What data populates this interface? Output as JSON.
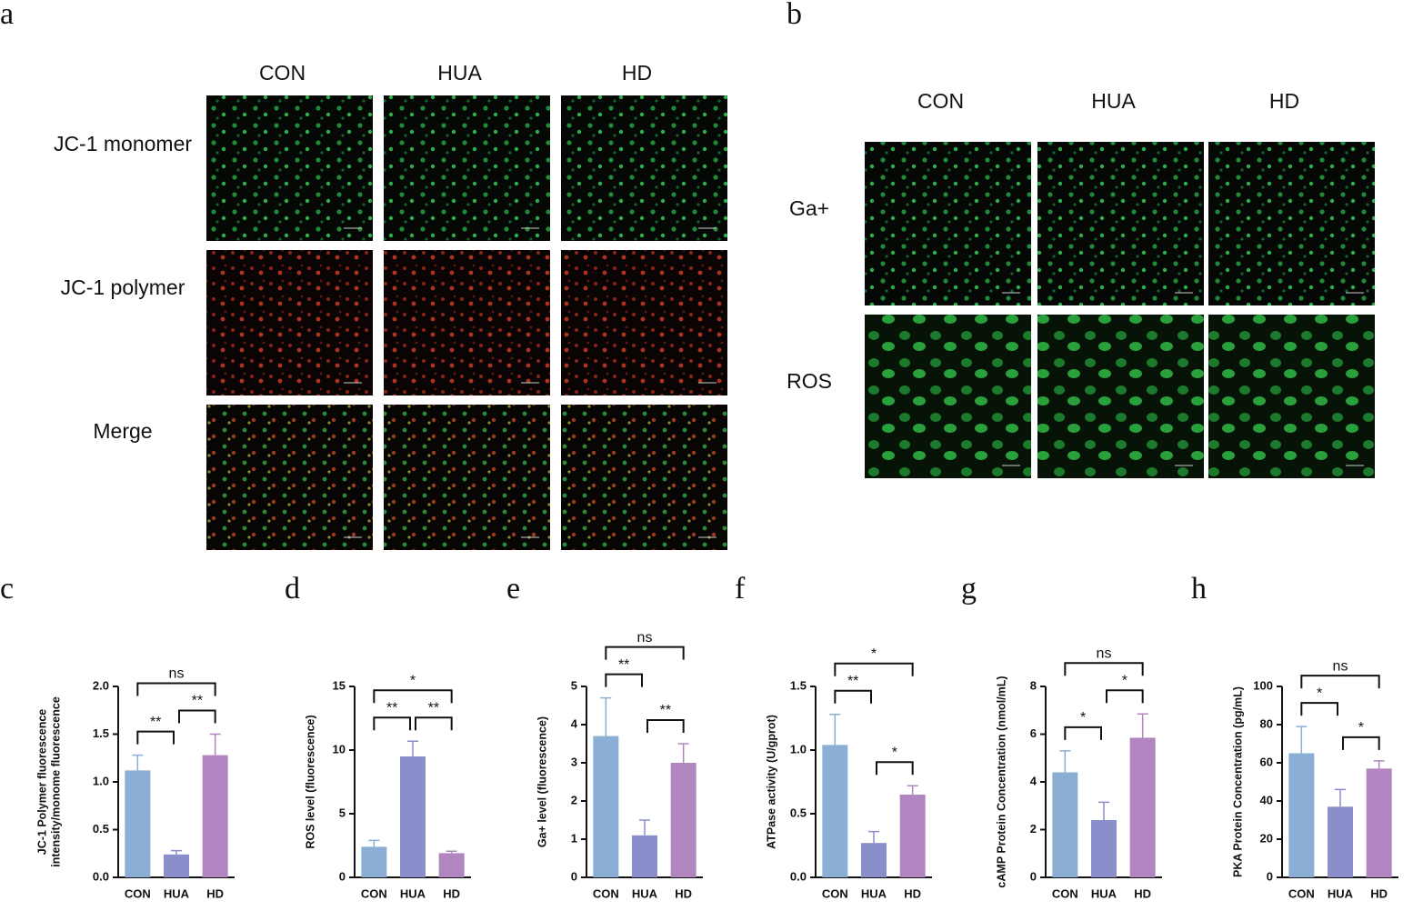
{
  "image_panels": [
    {
      "label": "a",
      "columns": [
        "CON",
        "HUA",
        "HD"
      ],
      "rows": [
        "JC-1 monomer",
        "JC-1 polymer",
        "Merge"
      ]
    },
    {
      "label": "b",
      "columns": [
        "CON",
        "HUA",
        "HD"
      ],
      "rows": [
        "Ga+",
        "ROS"
      ]
    }
  ],
  "chart_data": [
    {
      "type": "bar",
      "panel": "c",
      "ylabel": [
        "JC-1 Polymer fluorescence",
        "intensity/monome fluorescence"
      ],
      "categories": [
        "CON",
        "HUA",
        "HD"
      ],
      "values": [
        1.12,
        0.24,
        1.28
      ],
      "errors": [
        0.16,
        0.04,
        0.22
      ],
      "colors": [
        "#8aaed4",
        "#8a8fcc",
        "#b085c0"
      ],
      "ylim": [
        0,
        2
      ],
      "yticks": [
        {
          "value": 0,
          "label": "0.0"
        },
        {
          "value": 0.5,
          "label": "0.5"
        },
        {
          "value": 1,
          "label": "1.0"
        },
        {
          "value": 1.5,
          "label": "1.5"
        },
        {
          "value": 2,
          "label": "2.0"
        }
      ],
      "brackets": [
        {
          "between": [
            "CON",
            "HUA"
          ],
          "label": "**"
        },
        {
          "between": [
            "HUA",
            "HD"
          ],
          "label": "**"
        },
        {
          "between": [
            "CON",
            "HD"
          ],
          "label": "ns"
        }
      ]
    },
    {
      "type": "bar",
      "panel": "d",
      "ylabel": [
        "ROS level (fluorescence)"
      ],
      "categories": [
        "CON",
        "HUA",
        "HD"
      ],
      "values": [
        2.4,
        9.5,
        1.9
      ],
      "errors": [
        0.5,
        1.2,
        0.15
      ],
      "colors": [
        "#8aaed4",
        "#8a8fcc",
        "#b085c0"
      ],
      "ylim": [
        0,
        15
      ],
      "yticks": [
        0,
        5,
        10,
        15
      ],
      "brackets": [
        {
          "between": [
            "CON",
            "HUA"
          ],
          "label": "**"
        },
        {
          "between": [
            "HUA",
            "HD"
          ],
          "label": "**"
        },
        {
          "between": [
            "CON",
            "HD"
          ],
          "label": "*"
        }
      ]
    },
    {
      "type": "bar",
      "panel": "e",
      "ylabel": [
        "Ga+ level (fluorescence)"
      ],
      "categories": [
        "CON",
        "HUA",
        "HD"
      ],
      "values": [
        3.7,
        1.1,
        3.0
      ],
      "errors": [
        1.0,
        0.4,
        0.5
      ],
      "colors": [
        "#8aaed4",
        "#8a8fcc",
        "#b085c0"
      ],
      "ylim": [
        0,
        5
      ],
      "yticks": [
        0,
        1,
        2,
        3,
        4,
        5
      ],
      "brackets": [
        {
          "between": [
            "CON",
            "HUA"
          ],
          "label": "**"
        },
        {
          "between": [
            "HUA",
            "HD"
          ],
          "label": "**"
        },
        {
          "between": [
            "CON",
            "HD"
          ],
          "label": "ns"
        }
      ]
    },
    {
      "type": "bar",
      "panel": "f",
      "ylabel": [
        "ATPase activity (U/gprot)"
      ],
      "categories": [
        "CON",
        "HUA",
        "HD"
      ],
      "values": [
        1.04,
        0.27,
        0.65
      ],
      "errors": [
        0.24,
        0.09,
        0.07
      ],
      "colors": [
        "#8aaed4",
        "#8a8fcc",
        "#b085c0"
      ],
      "ylim": [
        0,
        1.5
      ],
      "yticks": [
        {
          "value": 0,
          "label": "0.0"
        },
        {
          "value": 0.5,
          "label": "0.5"
        },
        {
          "value": 1,
          "label": "1.0"
        },
        {
          "value": 1.5,
          "label": "1.5"
        }
      ],
      "brackets": [
        {
          "between": [
            "CON",
            "HUA"
          ],
          "label": "**"
        },
        {
          "between": [
            "HUA",
            "HD"
          ],
          "label": "*"
        },
        {
          "between": [
            "CON",
            "HD"
          ],
          "label": "*"
        }
      ]
    },
    {
      "type": "bar",
      "panel": "g",
      "ylabel": [
        "cAMP  Protein Concentration (nmol/mL)"
      ],
      "categories": [
        "CON",
        "HUA",
        "HD"
      ],
      "values": [
        4.4,
        2.4,
        5.85
      ],
      "errors": [
        0.9,
        0.75,
        1.0
      ],
      "colors": [
        "#8aaed4",
        "#8a8fcc",
        "#b085c0"
      ],
      "ylim": [
        0,
        8
      ],
      "yticks": [
        0,
        2,
        4,
        6,
        8
      ],
      "brackets": [
        {
          "between": [
            "CON",
            "HUA"
          ],
          "label": "*"
        },
        {
          "between": [
            "HUA",
            "HD"
          ],
          "label": "*"
        },
        {
          "between": [
            "CON",
            "HD"
          ],
          "label": "ns"
        }
      ]
    },
    {
      "type": "bar",
      "panel": "h",
      "ylabel": [
        "PKA Protein Concentration (pg/mL)"
      ],
      "categories": [
        "CON",
        "HUA",
        "HD"
      ],
      "values": [
        65,
        37,
        57
      ],
      "errors": [
        14,
        9,
        4
      ],
      "colors": [
        "#8aaed4",
        "#8a8fcc",
        "#b085c0"
      ],
      "ylim": [
        0,
        100
      ],
      "yticks": [
        0,
        20,
        40,
        60,
        80,
        100
      ],
      "brackets": [
        {
          "between": [
            "CON",
            "HUA"
          ],
          "label": "*"
        },
        {
          "between": [
            "HUA",
            "HD"
          ],
          "label": "*"
        },
        {
          "between": [
            "CON",
            "HD"
          ],
          "label": "ns"
        }
      ]
    }
  ]
}
